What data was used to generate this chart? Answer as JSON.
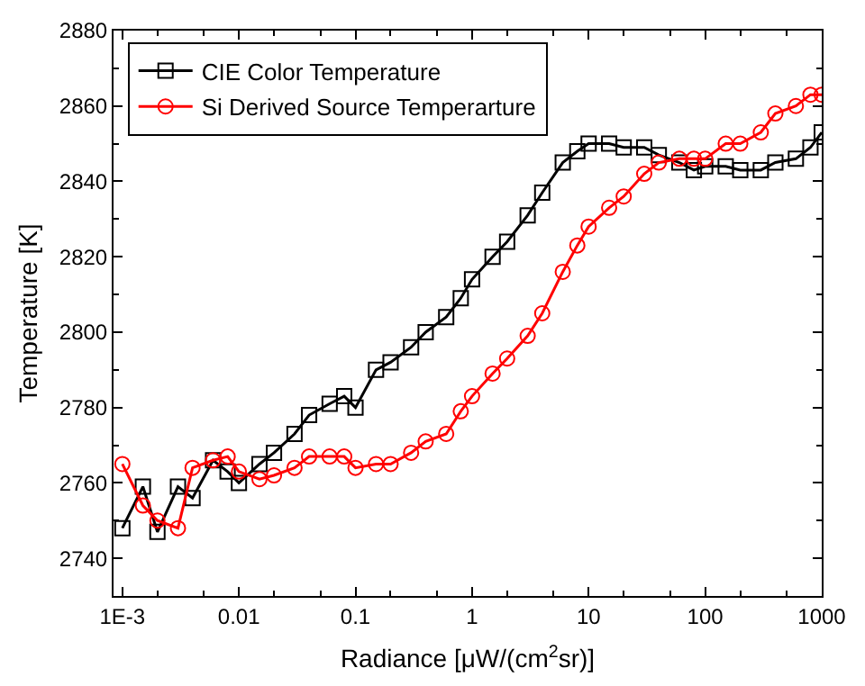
{
  "chart_data": {
    "type": "line",
    "xlabel": "Radiance [μW/(cm$^{2}$sr)]",
    "ylabel": "Temperature [K]",
    "x": [
      0.001,
      0.0015,
      0.002,
      0.003,
      0.004,
      0.006,
      0.008,
      0.01,
      0.015,
      0.02,
      0.03,
      0.04,
      0.06,
      0.08,
      0.1,
      0.15,
      0.2,
      0.3,
      0.4,
      0.6,
      0.8,
      1,
      1.5,
      2,
      3,
      4,
      6,
      8,
      10,
      15,
      20,
      30,
      40,
      60,
      80,
      100,
      150,
      200,
      300,
      400,
      600,
      800,
      1000
    ],
    "series": [
      {
        "name": "CIE Color Temperature",
        "color": "#000000",
        "marker": "square",
        "values": [
          2748,
          2759,
          2747,
          2759,
          2756,
          2766,
          2763,
          2760,
          2765,
          2768,
          2773,
          2778,
          2781,
          2783,
          2780,
          2790,
          2792,
          2796,
          2800,
          2804,
          2809,
          2814,
          2820,
          2824,
          2831,
          2837,
          2845,
          2848,
          2850,
          2850,
          2849,
          2849,
          2847,
          2845,
          2843,
          2844,
          2844,
          2843,
          2843,
          2845,
          2846,
          2849,
          2853
        ]
      },
      {
        "name": "Si Derived Source Temperarture",
        "color": "#ff0000",
        "marker": "circle",
        "values": [
          2765,
          2754,
          2750,
          2748,
          2764,
          2766,
          2767,
          2763,
          2761,
          2762,
          2764,
          2767,
          2767,
          2767,
          2764,
          2765,
          2765,
          2768,
          2771,
          2773,
          2779,
          2783,
          2789,
          2793,
          2799,
          2805,
          2816,
          2823,
          2828,
          2833,
          2836,
          2842,
          2845,
          2846,
          2846,
          2846,
          2850,
          2850,
          2853,
          2858,
          2860,
          2863,
          2863
        ]
      }
    ],
    "log": "x",
    "xlim": [
      0.00084,
      1000
    ],
    "xticks": [
      {
        "value": 0.001,
        "label": "1E-3"
      },
      0.01,
      0.1,
      1,
      10,
      100,
      1000
    ],
    "ylim": [
      2730,
      2880
    ],
    "yticks": [
      2740,
      2760,
      2780,
      2800,
      2820,
      2840,
      2860,
      2880
    ],
    "grid": false,
    "legend": "top left",
    "line_style": "solid"
  }
}
